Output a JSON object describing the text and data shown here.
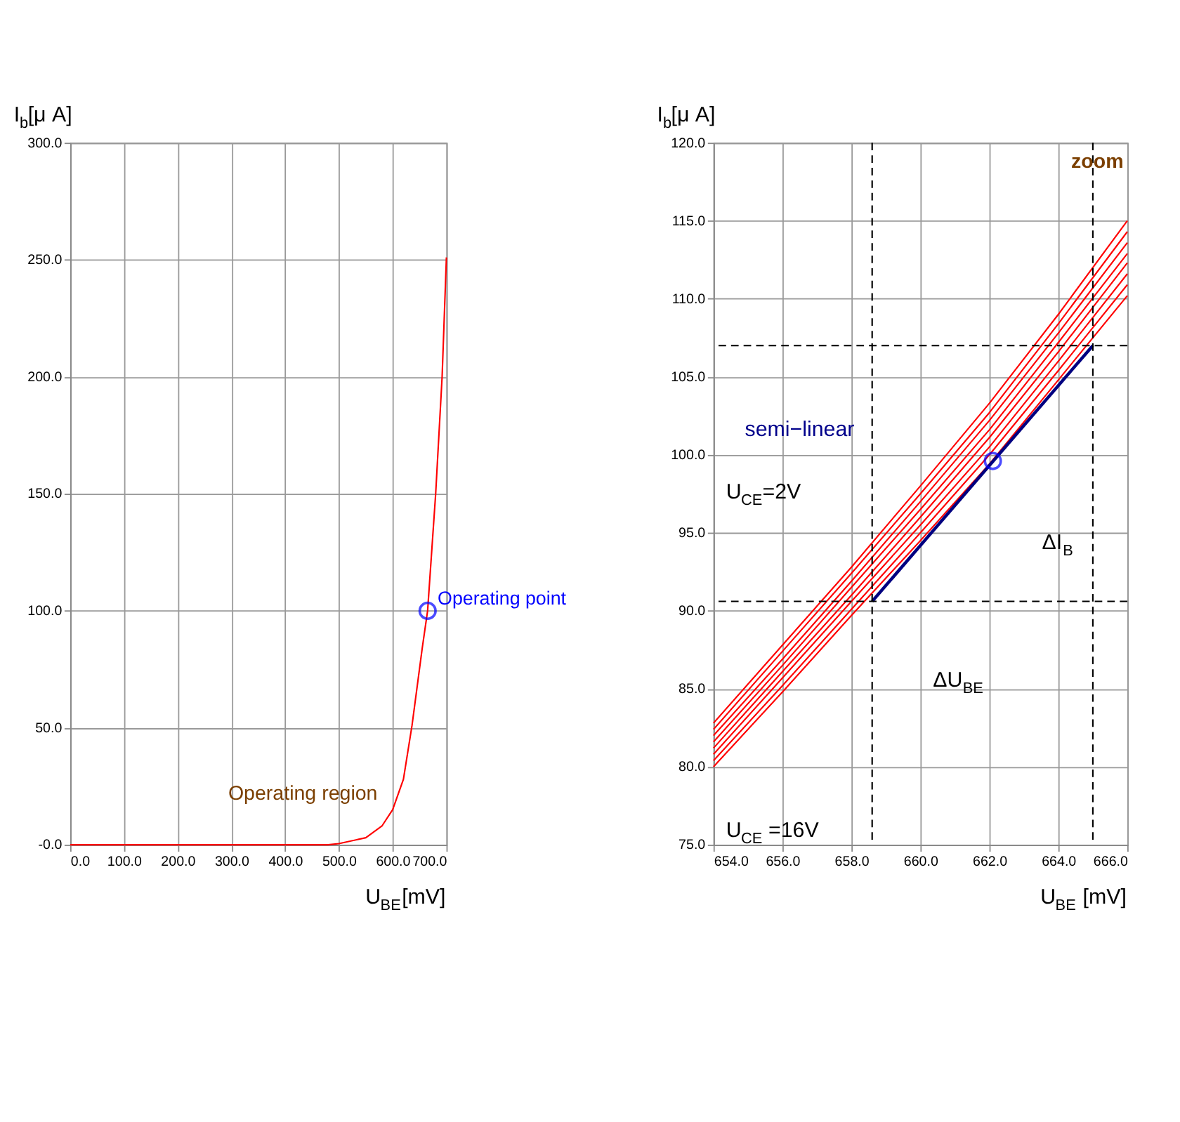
{
  "chart_data": [
    {
      "type": "line",
      "xlabel": "U$_{BE}$[mV]",
      "ylabel": "I$_{b}$[μ A]",
      "grid": true,
      "marker": "none",
      "line_style": "solid",
      "xlim": [
        0,
        700
      ],
      "xticks": [
        {
          "value": 0,
          "label": "0.0"
        },
        {
          "value": 100,
          "label": "100.0"
        },
        {
          "value": 200,
          "label": "200.0"
        },
        {
          "value": 300,
          "label": "300.0"
        },
        {
          "value": 400,
          "label": "400.0"
        },
        {
          "value": 500,
          "label": "500.0"
        },
        {
          "value": 600,
          "label": "600.0"
        },
        {
          "value": 700,
          "label": "700.0"
        }
      ],
      "ylim": [
        0,
        300
      ],
      "yticks": [
        {
          "value": 0,
          "label": "-0.0"
        },
        {
          "value": 50,
          "label": "50.0"
        },
        {
          "value": 100,
          "label": "100.0"
        },
        {
          "value": 150,
          "label": "150.0"
        },
        {
          "value": 200,
          "label": "200.0"
        },
        {
          "value": 250,
          "label": "250.0"
        },
        {
          "value": 300,
          "label": "300.0"
        }
      ],
      "series": [
        {
          "color": "#ff0000",
          "x": [
            0,
            480,
            500,
            550,
            580,
            600,
            620,
            636,
            655,
            665,
            680,
            692,
            700
          ],
          "values": [
            0,
            0,
            0.5,
            3,
            8,
            15,
            28,
            51,
            84,
            100,
            150,
            200,
            251
          ]
        },
        {
          "type": "scatter",
          "marker": "circle",
          "color": "#0000ff",
          "x": [
            665
          ],
          "values": [
            100
          ]
        }
      ],
      "annotations": [
        {
          "text": "Operating point",
          "x": 665,
          "y": 100
        },
        "Operating region"
      ]
    },
    {
      "type": "line",
      "xlabel": "U$_{BE}$ [mV]",
      "ylabel": "I$_{b}$[μ A]",
      "grid": true,
      "marker": "none",
      "line_style": "solid",
      "xlim": [
        654,
        666
      ],
      "xticks": [
        {
          "value": 654,
          "label": "654.0"
        },
        {
          "value": 656,
          "label": "656.0"
        },
        {
          "value": 658,
          "label": "658.0"
        },
        {
          "value": 660,
          "label": "660.0"
        },
        {
          "value": 662,
          "label": "662.0"
        },
        {
          "value": 664,
          "label": "664.0"
        },
        {
          "value": 666,
          "label": "666.0"
        }
      ],
      "ylim": [
        75,
        120
      ],
      "yticks": [
        {
          "value": 75,
          "label": "75.0"
        },
        {
          "value": 80,
          "label": "80.0"
        },
        {
          "value": 85,
          "label": "85.0"
        },
        {
          "value": 90,
          "label": "90.0"
        },
        {
          "value": 95,
          "label": "95.0"
        },
        {
          "value": 100,
          "label": "100.0"
        },
        {
          "value": 105,
          "label": "105.0"
        },
        {
          "value": 110,
          "label": "110.0"
        },
        {
          "value": 115,
          "label": "115.0"
        },
        {
          "value": 120,
          "label": "120.0"
        }
      ],
      "x": [
        654,
        656,
        658,
        660,
        662,
        664,
        666
      ],
      "series": [
        {
          "type": "line",
          "color": "#ff0000",
          "values": [
            80.0,
            84.8,
            89.7,
            94.5,
            99.4,
            104.8,
            110.2
          ]
        },
        {
          "type": "line",
          "color": "#ff0000",
          "values": [
            80.4,
            85.2,
            90.1,
            95.0,
            100.0,
            105.4,
            110.9
          ]
        },
        {
          "type": "line",
          "color": "#ff0000",
          "values": [
            80.8,
            85.7,
            90.6,
            95.5,
            100.5,
            106.0,
            111.6
          ]
        },
        {
          "type": "line",
          "color": "#ff0000",
          "values": [
            81.2,
            86.1,
            91.0,
            96.0,
            101.1,
            106.6,
            112.3
          ]
        },
        {
          "type": "line",
          "color": "#ff0000",
          "values": [
            81.6,
            86.5,
            91.5,
            96.5,
            101.6,
            107.2,
            112.9
          ]
        },
        {
          "type": "line",
          "color": "#ff0000",
          "values": [
            82.0,
            86.9,
            91.9,
            97.0,
            102.2,
            107.8,
            113.6
          ]
        },
        {
          "type": "line",
          "color": "#ff0000",
          "values": [
            82.4,
            87.4,
            92.4,
            97.5,
            102.7,
            108.4,
            114.3
          ]
        },
        {
          "type": "line",
          "color": "#ff0000",
          "values": [
            82.8,
            87.8,
            92.8,
            98.0,
            103.3,
            109.0,
            115.0
          ]
        },
        {
          "type": "line",
          "color": "#000080",
          "x": [
            658.6,
            665.0
          ],
          "values": [
            90.6,
            107.0
          ]
        },
        {
          "type": "scatter",
          "marker": "circle",
          "color": "#0000ff",
          "x": [
            662.1
          ],
          "values": [
            99.6
          ]
        }
      ],
      "ref_lines": [
        {
          "axis": "x",
          "value": 658.6,
          "color": "#000000",
          "line_style": "dashed"
        },
        {
          "axis": "x",
          "value": 665.0,
          "color": "#000000",
          "line_style": "dashed"
        },
        {
          "axis": "y",
          "value": 90.6,
          "color": "#000000",
          "line_style": "dashed"
        },
        {
          "axis": "y",
          "value": 107.0,
          "color": "#000000",
          "line_style": "dashed"
        }
      ],
      "annotations": [
        "zoom",
        "semi−linear",
        "U$_{CE}$=2V",
        "U$_{CE}$ =16V",
        "ΔU$_{BE}$",
        "ΔI$_{B}$"
      ]
    }
  ]
}
